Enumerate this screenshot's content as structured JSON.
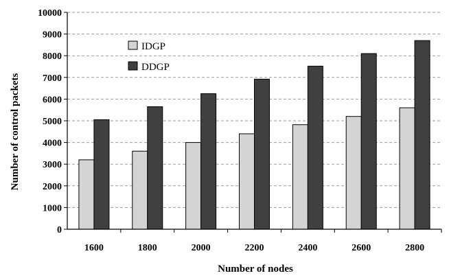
{
  "chart_data": {
    "type": "bar",
    "title": "",
    "xlabel": "Number of nodes",
    "ylabel": "Number of control packets",
    "categories": [
      "1600",
      "1800",
      "2000",
      "2200",
      "2400",
      "2600",
      "2800"
    ],
    "series": [
      {
        "name": "IDGP",
        "color": "#d4d4d4",
        "values": [
          3200,
          3600,
          4000,
          4400,
          4820,
          5200,
          5600
        ]
      },
      {
        "name": "DDGP",
        "color": "#404040",
        "values": [
          5050,
          5650,
          6250,
          6920,
          7520,
          8100,
          8700
        ]
      }
    ],
    "ylim": [
      0,
      10000
    ],
    "yticks": [
      0,
      1000,
      2000,
      3000,
      4000,
      5000,
      6000,
      7000,
      8000,
      9000,
      10000
    ],
    "grid": true,
    "grid_style": "dashed",
    "legend_position": "top-left"
  }
}
